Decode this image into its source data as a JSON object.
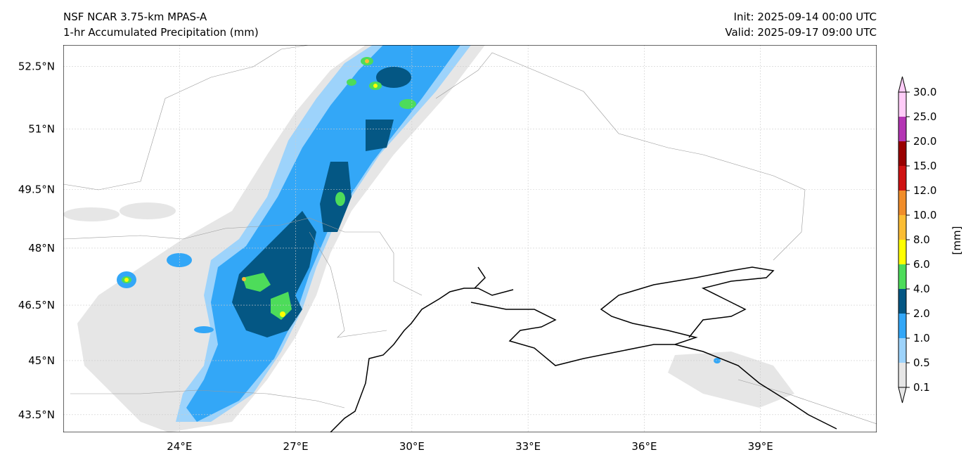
{
  "header": {
    "model": "NSF NCAR 3.75-km MPAS-A",
    "field": "1-hr Accumulated Precipitation (mm)",
    "init": "Init: 2025-09-14 00:00 UTC",
    "valid": "Valid: 2025-09-17 09:00 UTC"
  },
  "chart_data": {
    "type": "heatmap",
    "title": "1-hr Accumulated Precipitation (mm)",
    "x_ticks": [
      {
        "value": 24,
        "label": "24°E"
      },
      {
        "value": 27,
        "label": "27°E"
      },
      {
        "value": 30,
        "label": "30°E"
      },
      {
        "value": 33,
        "label": "33°E"
      },
      {
        "value": 36,
        "label": "36°E"
      },
      {
        "value": 39,
        "label": "39°E"
      }
    ],
    "y_ticks": [
      {
        "value": 52.5,
        "label": "52.5°N"
      },
      {
        "value": 51,
        "label": "51°N"
      },
      {
        "value": 49.5,
        "label": "49.5°N"
      },
      {
        "value": 48,
        "label": "48°N"
      },
      {
        "value": 46.5,
        "label": "46.5°N"
      },
      {
        "value": 45,
        "label": "45°N"
      },
      {
        "value": 43.5,
        "label": "43.5°N"
      }
    ],
    "lon_range": [
      21,
      42
    ],
    "lat_range": [
      43,
      53
    ],
    "grid": true,
    "colorbar": {
      "label": "[mm]",
      "levels": [
        "0.1",
        "0.5",
        "1.0",
        "2.0",
        "4.0",
        "6.0",
        "8.0",
        "10.0",
        "12.0",
        "15.0",
        "20.0",
        "25.0",
        "30.0"
      ],
      "colors": [
        "#e6e6e6",
        "#9dd3fb",
        "#33a7f7",
        "#045784",
        "#4ddc5a",
        "#ffff00",
        "#fbbd34",
        "#f08d2a",
        "#cf1212",
        "#990000",
        "#b436b4",
        "#ffccf8"
      ],
      "extend": "both"
    }
  }
}
